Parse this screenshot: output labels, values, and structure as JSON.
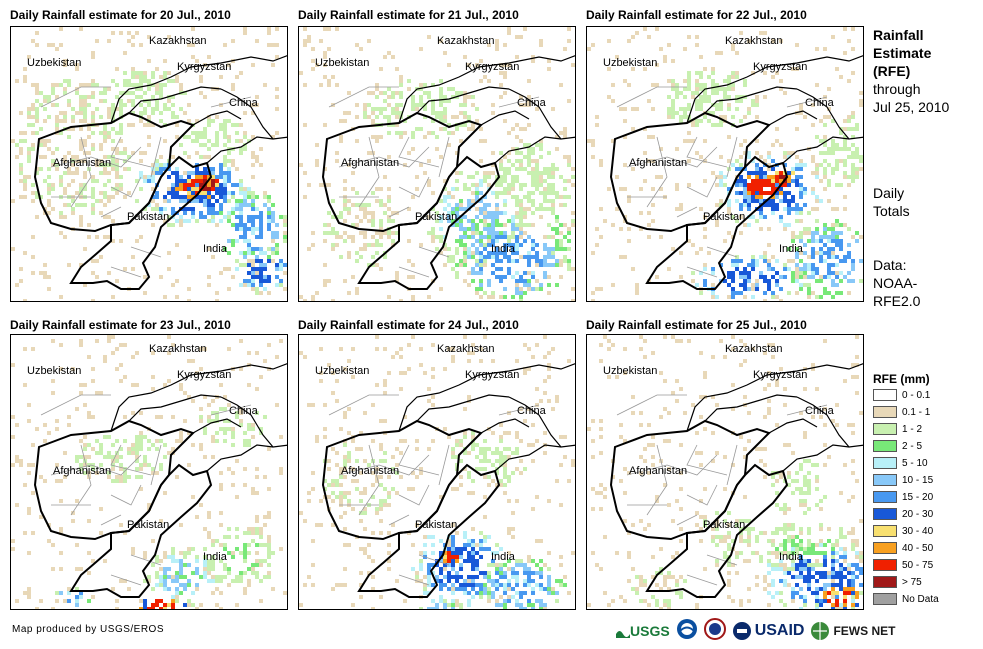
{
  "panels": [
    {
      "title": "Daily Rainfall estimate for 20 Jul., 2010"
    },
    {
      "title": "Daily Rainfall estimate for 21 Jul., 2010"
    },
    {
      "title": "Daily Rainfall estimate for 22 Jul., 2010"
    },
    {
      "title": "Daily Rainfall estimate for 23 Jul., 2010"
    },
    {
      "title": "Daily Rainfall estimate for 24 Jul., 2010"
    },
    {
      "title": "Daily Rainfall estimate for 25 Jul., 2010"
    }
  ],
  "map_labels": {
    "kazakhstan": "Kazakhstan",
    "uzbekistan": "Uzbekistan",
    "kyrgyzstan": "Kyrgyzstan",
    "china": "China",
    "afghanistan": "Afghanistan",
    "pakistan": "Pakistan",
    "india": "India"
  },
  "sidebar": {
    "title_lines": [
      "Rainfall",
      "Estimate",
      "(RFE)"
    ],
    "through": "through",
    "date": "Jul 25, 2010",
    "daily": "Daily",
    "totals": "Totals",
    "data_label": "Data:",
    "data_source_1": "NOAA-",
    "data_source_2": "RFE2.0"
  },
  "legend": {
    "title": "RFE (mm)",
    "items": [
      {
        "label": "0 - 0.1",
        "color": "#ffffff"
      },
      {
        "label": "0.1 - 1",
        "color": "#e8d8b8"
      },
      {
        "label": "1 - 2",
        "color": "#c8f0b0"
      },
      {
        "label": "2 - 5",
        "color": "#78e878"
      },
      {
        "label": "5 - 10",
        "color": "#b8f0f8"
      },
      {
        "label": "10 - 15",
        "color": "#88c8f8"
      },
      {
        "label": "15 - 20",
        "color": "#4898f0"
      },
      {
        "label": "20 - 30",
        "color": "#1858d8"
      },
      {
        "label": "30 - 40",
        "color": "#f8e070"
      },
      {
        "label": "40 - 50",
        "color": "#f8a020"
      },
      {
        "label": "50 - 75",
        "color": "#f02000"
      },
      {
        "label": "> 75",
        "color": "#a01818"
      },
      {
        "label": "No Data",
        "color": "#a0a0a0"
      }
    ]
  },
  "footer": {
    "credit": "Map produced by USGS/EROS"
  },
  "logos": {
    "usgs": "USGS",
    "usaid": "USAID",
    "fewsnet": "FEWS NET"
  }
}
